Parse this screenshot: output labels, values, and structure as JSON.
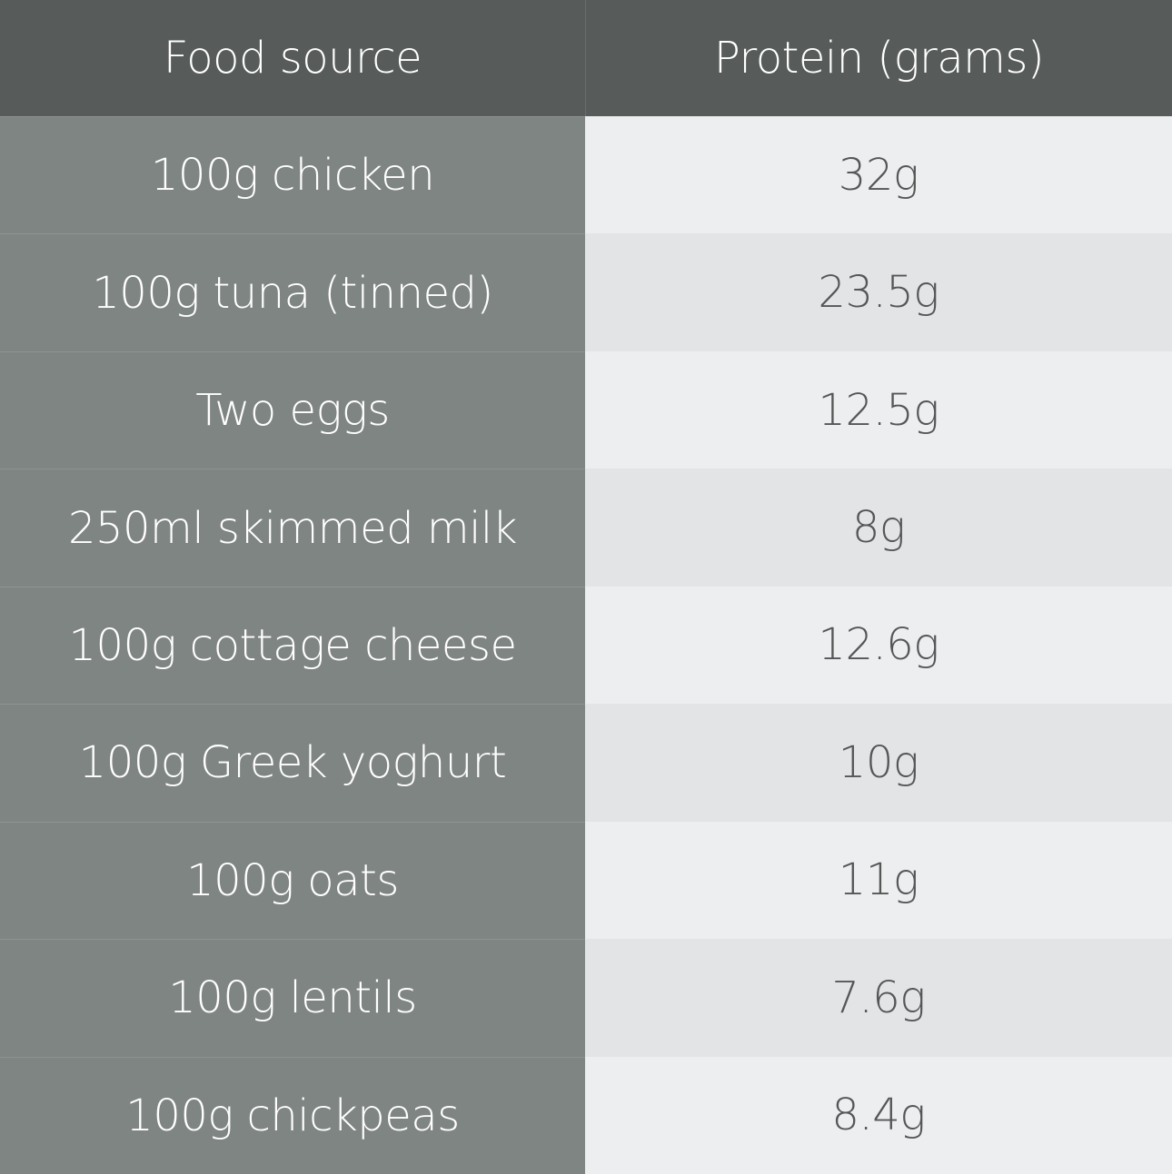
{
  "table": {
    "header": [
      "Food source",
      "Protein (grams)"
    ],
    "rows": [
      [
        "100g chicken",
        "32g"
      ],
      [
        "100g tuna (tinned)",
        "23.5g"
      ],
      [
        "Two eggs",
        "12.5g"
      ],
      [
        "250ml skimmed milk",
        "8g"
      ],
      [
        "100g cottage cheese",
        "12.6g"
      ],
      [
        "100g Greek yoghurt",
        "10g"
      ],
      [
        "100g oats",
        "11g"
      ],
      [
        "100g lentils",
        "7.6g"
      ],
      [
        "100g chickpeas",
        "8.4g"
      ]
    ]
  }
}
